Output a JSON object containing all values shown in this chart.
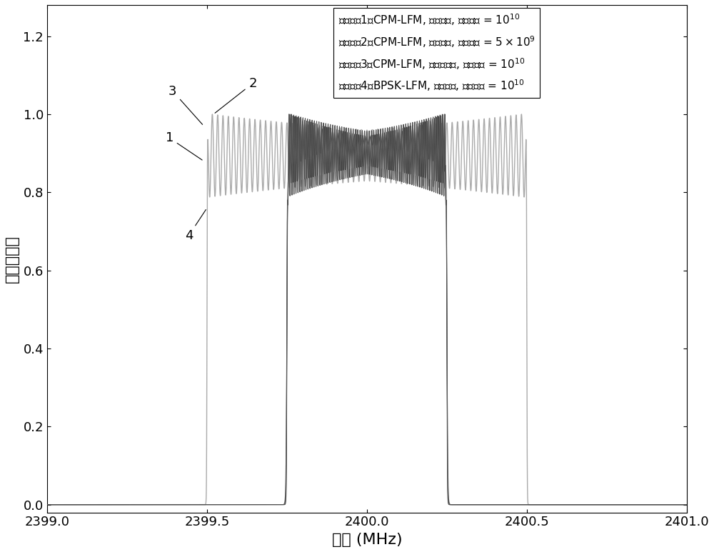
{
  "xlabel": "频率 (MHz)",
  "ylabel": "归一化幅值",
  "xlim": [
    2399.0,
    2401.0
  ],
  "ylim": [
    -0.02,
    1.28
  ],
  "xticks": [
    2399.0,
    2399.5,
    2400.0,
    2400.5,
    2401.0
  ],
  "yticks": [
    0.0,
    0.2,
    0.4,
    0.6,
    0.8,
    1.0,
    1.2
  ],
  "fc": 2400.0,
  "bw1": 0.5,
  "bw2": 1.0,
  "legend_lines": [
    "附图标记1为CPM-LFM, 矩形脉冲, 调频斜率 = 10$^{10}$",
    "附图标记2为CPM-LFM, 矩形脉冲, 调频斜率 = 5×10$^{9}$",
    "附图标记3为CPM-LFM, 升余弦脉冲, 调频斜率 = 10$^{10}$",
    "附图标记4为BPSK-LFM, 矩形脉冲, 调频斜率 = 10$^{10}$"
  ],
  "color1": "#404040",
  "color2": "#b0b0b0",
  "color3": "#606060",
  "color4": "#505050",
  "xlabel_fontsize": 16,
  "ylabel_fontsize": 16,
  "tick_fontsize": 13,
  "legend_fontsize": 11
}
